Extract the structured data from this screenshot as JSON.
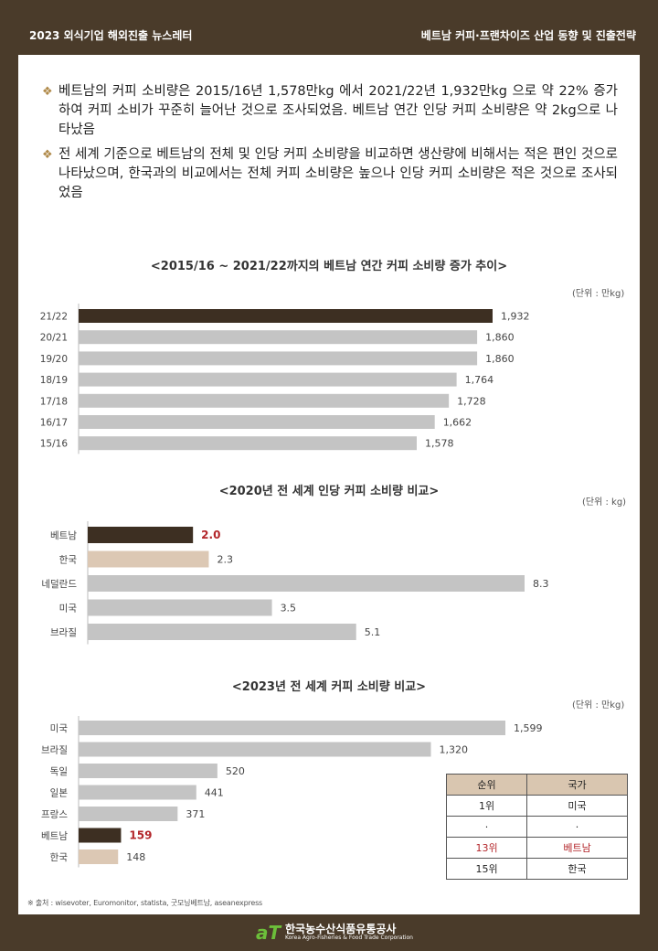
{
  "header": {
    "left": "2023 외식기업 해외진출 뉴스레터",
    "right": "베트남 커피·프랜차이즈 산업 동향 및 진출전략"
  },
  "bullets": [
    "베트남의 커피 소비량은 2015/16년 1,578만kg 에서 2021/22년 1,932만kg 으로 약 22% 증가하여 커피 소비가 꾸준히 늘어난 것으로 조사되었음. 베트남 연간 인당 커피 소비량은 약 2kg으로 나타났음",
    "전 세계 기준으로 베트남의 전체 및 인당 커피 소비량을 비교하면 생산량에 비해서는 적은 편인 것으로 나타났으며, 한국과의 비교에서는 전체 커피 소비량은 높으나 인당 커피 소비량은 적은 것으로 조사되었음"
  ],
  "bullet_mark": "❖",
  "colors": {
    "dark": "#3d2f22",
    "gray": "#c4c4c4",
    "beige": "#dcc8b4",
    "red": "#b3262a"
  },
  "chart_data": [
    {
      "type": "bar",
      "title": "<2015/16 ~ 2021/22까지의 베트남 연간 커피 소비량 증가 추이>",
      "unit": "(단위 : 만kg)",
      "categories": [
        "21/22",
        "20/21",
        "19/20",
        "18/19",
        "17/18",
        "16/17",
        "15/16"
      ],
      "values": [
        1932,
        1860,
        1860,
        1764,
        1728,
        1662,
        1578
      ],
      "labels": [
        "1,932",
        "1,860",
        "1,860",
        "1,764",
        "1,728",
        "1,662",
        "1,578"
      ],
      "highlight": [
        0
      ],
      "orientation": "horizontal"
    },
    {
      "type": "bar",
      "title": "<2020년 전 세계 인당 커피 소비량 비교>",
      "unit": "(단위 : kg)",
      "categories": [
        "베트남",
        "한국",
        "네덜란드",
        "미국",
        "브라질"
      ],
      "values": [
        2.0,
        2.3,
        8.3,
        3.5,
        5.1
      ],
      "labels": [
        "2.0",
        "2.3",
        "8.3",
        "3.5",
        "5.1"
      ],
      "highlight": [
        0
      ],
      "korea": [
        1
      ],
      "orientation": "horizontal"
    },
    {
      "type": "bar",
      "title": "<2023년 전 세계 커피 소비량 비교>",
      "unit": "(단위 : 만kg)",
      "categories": [
        "미국",
        "브라질",
        "독일",
        "일본",
        "프랑스",
        "베트남",
        "한국"
      ],
      "values": [
        1599,
        1320,
        520,
        441,
        371,
        159,
        148
      ],
      "labels": [
        "1,599",
        "1,320",
        "520",
        "441",
        "371",
        "159",
        "148"
      ],
      "highlight": [
        5
      ],
      "korea": [
        6
      ],
      "orientation": "horizontal"
    }
  ],
  "rank_table": {
    "headers": [
      "순위",
      "국가"
    ],
    "rows": [
      [
        "1위",
        "미국"
      ],
      [
        "·",
        "·"
      ],
      [
        "13위",
        "베트남"
      ],
      [
        "15위",
        "한국"
      ]
    ]
  },
  "source": "※ 출처 : wisevoter, Euromonitor, statista, 굿모닝베트남, aseanexpress",
  "footer": {
    "logo": "aT",
    "name_ko": "한국농수산식품유통공사",
    "name_en": "Korea Agro-Fisheries & Food Trade Corporation"
  }
}
